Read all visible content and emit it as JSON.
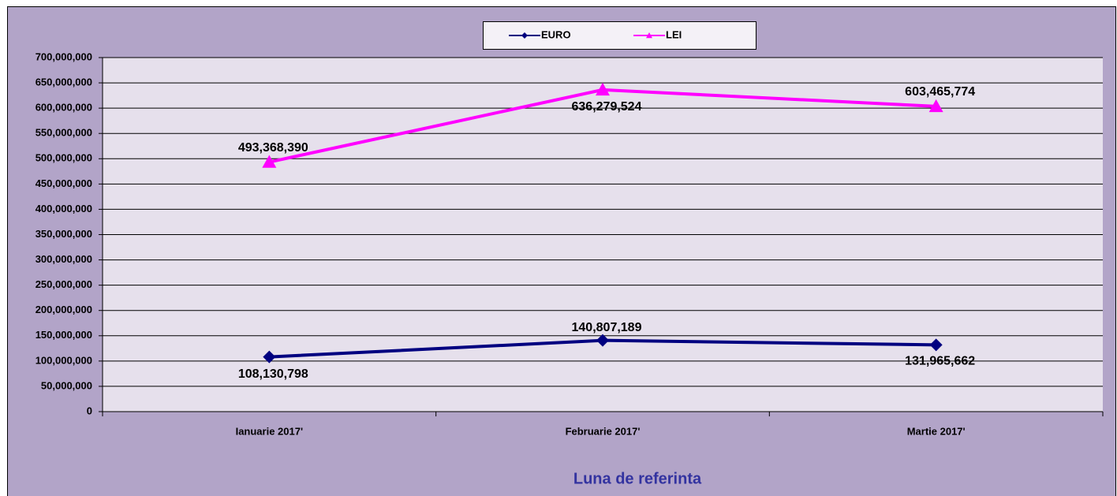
{
  "chart_data": {
    "type": "line",
    "x_label": "Luna de referinta",
    "categories": [
      "Ianuarie 2017'",
      "Februarie 2017'",
      "Martie 2017'"
    ],
    "series": [
      {
        "name": "EURO",
        "color": "#000080",
        "marker": "diamond",
        "values": [
          108130798,
          140807189,
          131965662
        ],
        "value_labels": [
          "108,130,798",
          "140,807,189",
          "131,965,662"
        ]
      },
      {
        "name": "LEI",
        "color": "#ff00ff",
        "marker": "triangle",
        "values": [
          493368390,
          636279524,
          603465774
        ],
        "value_labels": [
          "493,368,390",
          "636,279,524",
          "603,465,774"
        ]
      }
    ],
    "ylim": [
      0,
      700000000
    ],
    "yticks": [
      0,
      {
        "value": 50000000,
        "label": "50,000,000"
      },
      {
        "value": 100000000,
        "label": "100,000,000"
      },
      {
        "value": 150000000,
        "label": "150,000,000"
      },
      {
        "value": 200000000,
        "label": "200,000,000"
      },
      {
        "value": 250000000,
        "label": "250,000,000"
      },
      {
        "value": 300000000,
        "label": "300,000,000"
      },
      {
        "value": 350000000,
        "label": "350,000,000"
      },
      {
        "value": 400000000,
        "label": "400,000,000"
      },
      {
        "value": 450000000,
        "label": "450,000,000"
      },
      {
        "value": 500000000,
        "label": "500,000,000"
      },
      {
        "value": 550000000,
        "label": "550,000,000"
      },
      {
        "value": 600000000,
        "label": "600,000,000"
      },
      {
        "value": 650000000,
        "label": "650,000,000"
      },
      {
        "value": 700000000,
        "label": "700,000,000"
      }
    ],
    "grid": true,
    "legend": "top"
  }
}
